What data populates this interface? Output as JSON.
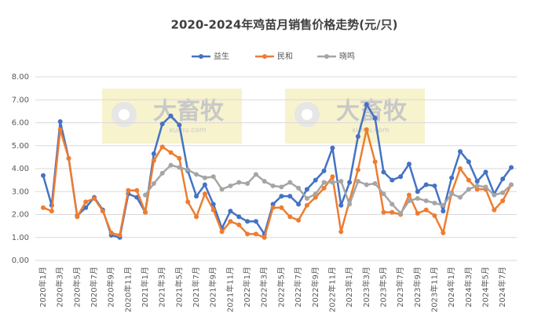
{
  "chart_data": {
    "type": "line",
    "title": "2020-2024年鸡苗月销售价格走势(元/只)",
    "categories": [
      "2020年1月",
      null,
      "2020年3月",
      null,
      "2020年5月",
      null,
      "2020年7月",
      null,
      "2020年9月",
      null,
      "2020年11月",
      null,
      "2021年1月",
      null,
      "2021年3月",
      null,
      "2021年5月",
      null,
      "2021年7月",
      null,
      "2021年9月",
      null,
      "2021年11月",
      null,
      "2022年1月",
      null,
      "2022年3月",
      null,
      "2022年5月",
      null,
      "2022年7月",
      null,
      "2022年9月",
      null,
      "2022年11月",
      null,
      "2023年1月",
      null,
      "2023年3月",
      null,
      "2023年5月",
      null,
      "2023年7月",
      null,
      "2023年9月",
      null,
      "2023年11月",
      null,
      "2024年1月",
      null,
      "2024年3月",
      null,
      "2024年5月",
      null,
      "2024年7月",
      null
    ],
    "series": [
      {
        "name": "益生",
        "color": "#4472c4",
        "values": [
          3.7,
          2.4,
          6.05,
          4.45,
          1.95,
          2.3,
          2.75,
          2.2,
          1.1,
          1.0,
          2.9,
          2.75,
          2.1,
          4.65,
          5.95,
          6.3,
          5.9,
          3.9,
          2.8,
          3.3,
          2.45,
          1.4,
          2.15,
          1.9,
          1.7,
          1.7,
          1.15,
          2.45,
          2.8,
          2.8,
          2.45,
          3.1,
          3.5,
          3.9,
          4.9,
          2.4,
          3.4,
          5.4,
          6.8,
          6.2,
          3.85,
          3.5,
          3.65,
          4.2,
          3.0,
          3.3,
          3.25,
          2.15,
          3.6,
          4.75,
          4.3,
          3.45,
          3.85,
          2.9,
          3.55,
          4.05
        ]
      },
      {
        "name": "民和",
        "color": "#ed7d31",
        "values": [
          2.3,
          2.15,
          5.7,
          4.45,
          1.9,
          2.55,
          2.7,
          2.15,
          1.2,
          1.1,
          3.05,
          3.05,
          2.1,
          4.35,
          4.95,
          4.7,
          4.45,
          2.55,
          1.9,
          2.9,
          2.2,
          1.25,
          1.7,
          1.55,
          1.15,
          1.15,
          1.0,
          2.3,
          2.3,
          1.9,
          1.75,
          2.4,
          2.75,
          3.15,
          3.65,
          1.25,
          2.6,
          3.95,
          5.7,
          4.3,
          2.1,
          2.1,
          2.0,
          2.85,
          2.05,
          2.2,
          1.95,
          1.2,
          2.95,
          4.0,
          3.5,
          3.1,
          3.1,
          2.2,
          2.6,
          3.3
        ]
      },
      {
        "name": "晓鸣",
        "color": "#a5a5a5",
        "values": [
          null,
          null,
          null,
          null,
          null,
          null,
          null,
          null,
          null,
          null,
          null,
          null,
          2.85,
          3.35,
          3.8,
          4.15,
          4.05,
          3.95,
          3.75,
          3.6,
          3.65,
          3.1,
          3.25,
          3.4,
          3.35,
          3.75,
          3.45,
          3.25,
          3.2,
          3.4,
          3.15,
          2.7,
          2.9,
          3.4,
          3.4,
          3.45,
          2.45,
          3.45,
          3.3,
          3.35,
          2.9,
          2.45,
          2.05,
          2.6,
          2.7,
          2.6,
          2.5,
          2.4,
          2.9,
          2.75,
          3.1,
          3.25,
          3.2,
          2.85,
          2.95,
          3.3
        ]
      }
    ],
    "ylim": [
      0,
      8
    ],
    "yticks": [
      {
        "value": 0,
        "label": "0.00"
      },
      {
        "value": 1,
        "label": "1.00"
      },
      {
        "value": 2,
        "label": "2.00"
      },
      {
        "value": 3,
        "label": "3.00"
      },
      {
        "value": 4,
        "label": "4.00"
      },
      {
        "value": 5,
        "label": "5.00"
      },
      {
        "value": 6,
        "label": "6.00"
      },
      {
        "value": 7,
        "label": "7.00"
      },
      {
        "value": 8,
        "label": "8.00"
      }
    ],
    "grid": true,
    "legend": "top"
  },
  "watermarks": [
    {
      "text": "大畜牧",
      "url": "xumu.com"
    },
    {
      "text": "大畜牧",
      "url": "xumu.com"
    }
  ]
}
